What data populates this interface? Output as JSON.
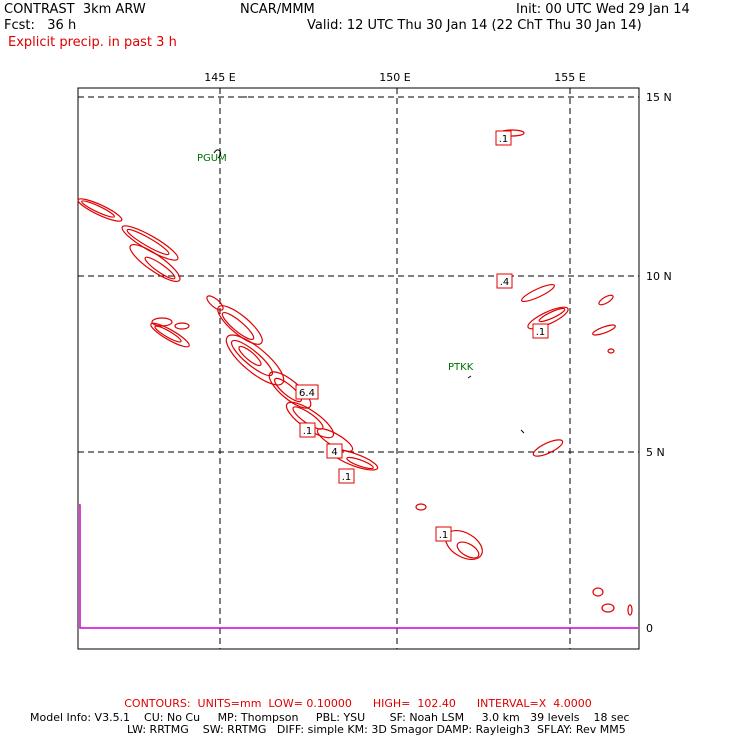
{
  "header": {
    "model": "CONTRAST  3km ARW",
    "forecast": "Fcst:   36 h",
    "field": "Explicit precip. in past 3 h",
    "center": "NCAR/MMM",
    "init": "Init: 00 UTC Wed 29 Jan 14",
    "valid": "Valid: 12 UTC Thu 30 Jan 14 (22 ChT Thu 30 Jan 14)"
  },
  "map": {
    "lon_labels": [
      "145 E",
      "150 E",
      "155 E"
    ],
    "lat_labels": [
      "15 N",
      "10 N",
      "5 N"
    ],
    "scale_zero": "0",
    "stations": [
      {
        "id": "PGUM"
      },
      {
        "id": "PTKK"
      }
    ],
    "contour_labels": [
      ".1",
      ".4",
      ".1",
      "6.4",
      ".1",
      "4",
      ".1",
      ".1"
    ],
    "contour_color": "#e00000",
    "station_color": "#007000",
    "timeseries_color": "#d000d0"
  },
  "footer": {
    "contours": "CONTOURS:  UNITS=mm  LOW= 0.10000      HIGH=  102.40      INTERVAL=X  4.0000",
    "model_info_1": "Model Info: V3.5.1    CU: No Cu     MP: Thompson     PBL: YSU       SF: Noah LSM     3.0 km   39 levels    18 sec",
    "model_info_2": "LW: RRTMG    SW: RRTMG   DIFF: simple KM: 3D Smagor DAMP: Rayleigh3  SFLAY: Rev MM5"
  }
}
